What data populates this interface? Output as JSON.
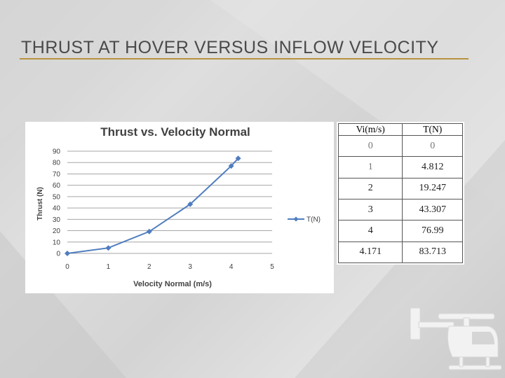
{
  "slide": {
    "title": "THRUST AT HOVER VERSUS INFLOW VELOCITY",
    "accent_color": "#b8923f"
  },
  "chart_data": {
    "type": "line",
    "title": "Thrust vs. Velocity Normal",
    "xlabel": "Velocity Normal (m/s)",
    "ylabel": "Thrust (N)",
    "xlim": [
      0,
      5
    ],
    "ylim": [
      0,
      90
    ],
    "x_ticks": [
      "0",
      "1",
      "2",
      "3",
      "4",
      "5"
    ],
    "y_ticks": [
      "0",
      "10",
      "20",
      "30",
      "40",
      "50",
      "60",
      "70",
      "80",
      "90"
    ],
    "grid": true,
    "legend_position": "right",
    "series": [
      {
        "name": "T(N)",
        "color": "#4f7dbf",
        "x": [
          0,
          1,
          2,
          3,
          4,
          4.171
        ],
        "y": [
          0,
          4.812,
          19.247,
          43.307,
          76.99,
          83.713
        ]
      }
    ]
  },
  "table": {
    "headers": [
      "Vi(m/s)",
      "T(N)"
    ],
    "rows": [
      [
        "0",
        "0"
      ],
      [
        "1",
        "4.812"
      ],
      [
        "2",
        "19.247"
      ],
      [
        "3",
        "43.307"
      ],
      [
        "4",
        "76.99"
      ],
      [
        "4.171",
        "83.713"
      ]
    ]
  },
  "decor": {
    "helicopter_icon": "helicopter-icon"
  }
}
